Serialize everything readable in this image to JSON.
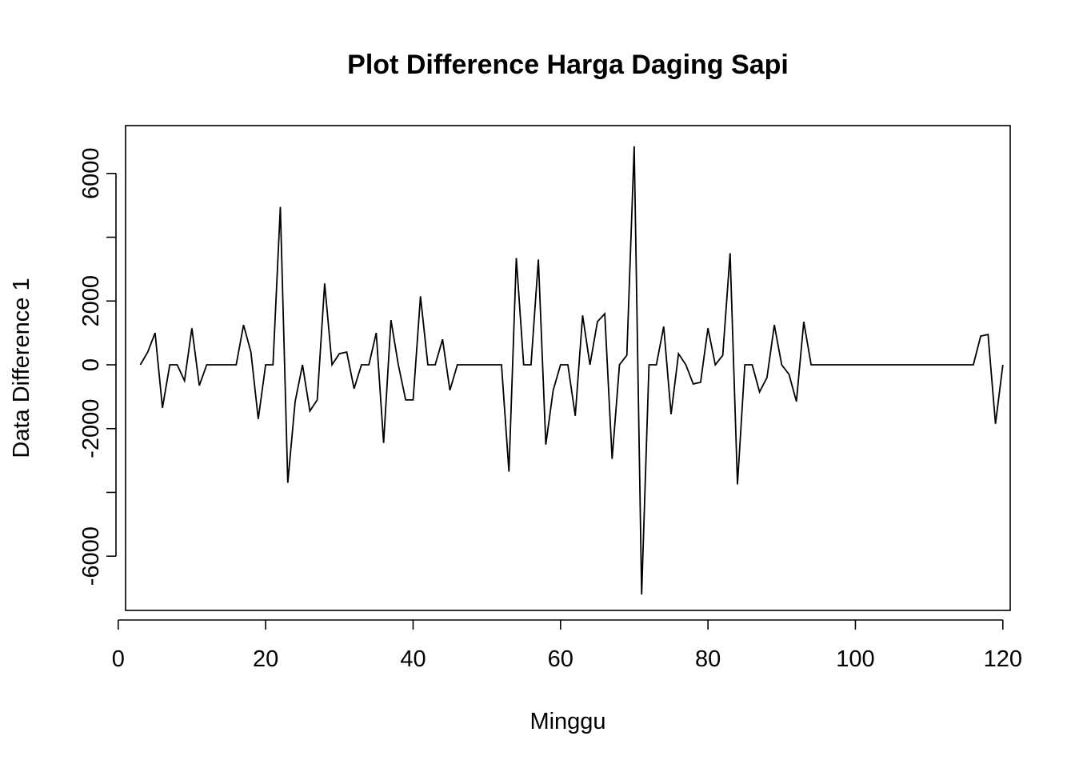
{
  "chart_data": {
    "type": "line",
    "title": "Plot Difference Harga Daging Sapi",
    "xlabel": "Minggu",
    "ylabel": "Data Difference 1",
    "xlim": [
      1,
      121
    ],
    "ylim": [
      -7700,
      7500
    ],
    "x_ticks": [
      0,
      20,
      40,
      60,
      80,
      100,
      120
    ],
    "y_ticks": [
      -6000,
      -4000,
      -2000,
      0,
      2000,
      4000,
      6000
    ],
    "y_tick_labels": [
      "-6000",
      "",
      "-2000",
      "0",
      "2000",
      "",
      "6000"
    ],
    "grid": false,
    "line_color": "#000000",
    "series": [
      {
        "x": [
          3,
          4,
          5,
          6,
          7,
          8,
          9,
          10,
          11,
          12,
          13,
          14,
          15,
          16,
          17,
          18,
          19,
          20,
          21,
          22,
          23,
          24,
          25,
          26,
          27,
          28,
          29,
          30,
          31,
          32,
          33,
          34,
          35,
          36,
          37,
          38,
          39,
          40,
          41,
          42,
          43,
          44,
          45,
          46,
          47,
          48,
          49,
          50,
          51,
          52,
          53,
          54,
          55,
          56,
          57,
          58,
          59,
          60,
          61,
          62,
          63,
          64,
          65,
          66,
          67,
          68,
          69,
          70,
          71,
          72,
          73,
          74,
          75,
          76,
          77,
          78,
          79,
          80,
          81,
          82,
          83,
          84,
          85,
          86,
          87,
          88,
          89,
          90,
          91,
          92,
          93,
          94,
          95,
          96,
          97,
          98,
          99,
          100,
          101,
          102,
          103,
          104,
          105,
          106,
          107,
          108,
          109,
          110,
          111,
          112,
          113,
          114,
          115,
          116,
          117,
          118,
          119,
          120
        ],
        "y": [
          0,
          400,
          1000,
          -1350,
          0,
          0,
          -500,
          1150,
          -650,
          0,
          0,
          0,
          0,
          0,
          1250,
          400,
          -1700,
          0,
          0,
          4950,
          -3700,
          -1150,
          0,
          -1450,
          -1100,
          2550,
          0,
          350,
          400,
          -750,
          0,
          0,
          1000,
          -2450,
          1400,
          0,
          -1100,
          -1100,
          2150,
          0,
          0,
          800,
          -800,
          0,
          0,
          0,
          0,
          0,
          0,
          0,
          -3350,
          3350,
          0,
          0,
          3300,
          -2500,
          -800,
          0,
          0,
          -1600,
          1550,
          0,
          1350,
          1600,
          -2950,
          0,
          300,
          6850,
          -7200,
          0,
          0,
          1200,
          -1550,
          350,
          0,
          -600,
          -550,
          1150,
          0,
          300,
          3500,
          -3750,
          0,
          0,
          -850,
          -400,
          1250,
          0,
          -300,
          -1150,
          1350,
          0,
          0,
          0,
          0,
          0,
          0,
          0,
          0,
          0,
          0,
          0,
          0,
          0,
          0,
          0,
          0,
          0,
          0,
          0,
          0,
          0,
          0,
          0,
          900,
          950,
          -1850,
          0
        ]
      }
    ]
  }
}
